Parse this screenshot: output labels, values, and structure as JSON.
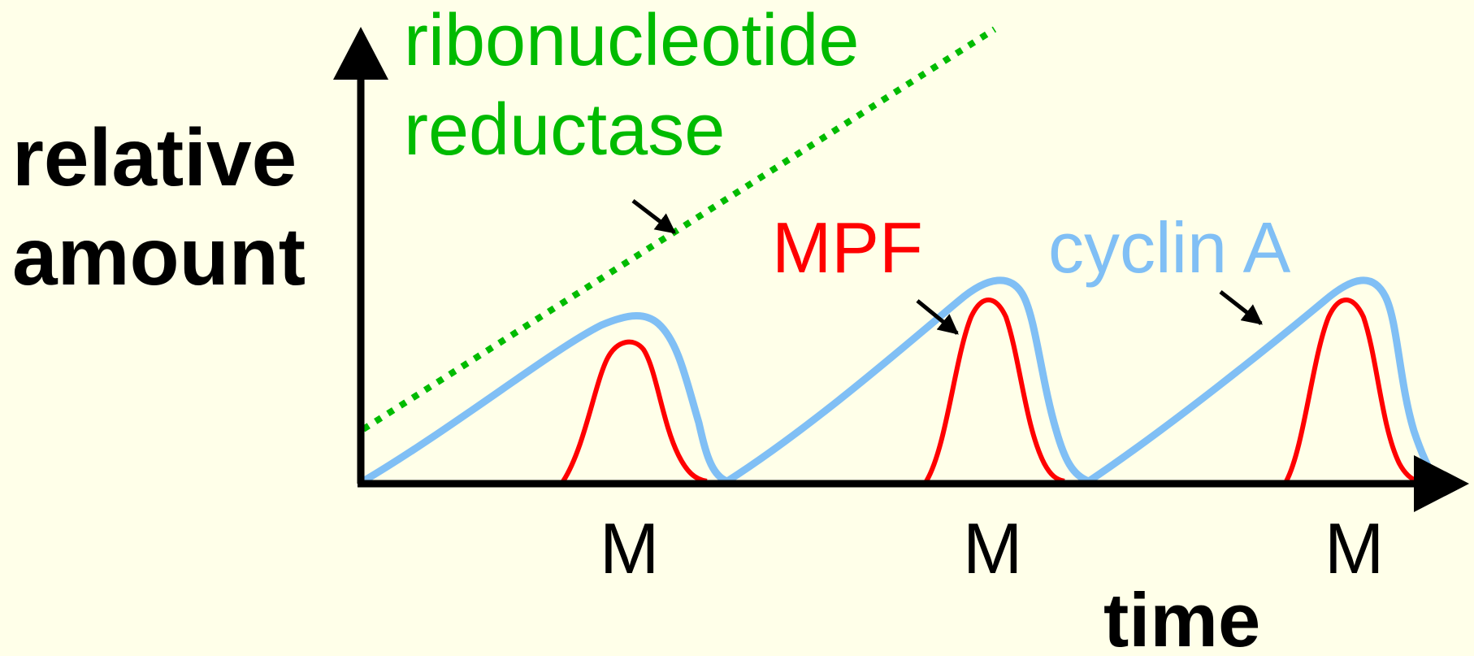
{
  "axis": {
    "y_label_lines": [
      "relative",
      "amount"
    ],
    "x_label": "time"
  },
  "phase_labels": [
    "M",
    "M",
    "M"
  ],
  "labels": {
    "ribonucleotide_reductase_lines": [
      "ribonucleotide",
      "reductase"
    ],
    "mpf": "MPF",
    "cyclin_a": "cyclin A"
  },
  "colors": {
    "background": "#ffffe9",
    "axis": "#000000",
    "ribonucleotide_reductase": "#00bb00",
    "mpf": "#ff0000",
    "cyclin_a": "#80bff5",
    "arrow": "#000000"
  },
  "curves": {
    "ribonucleotide_reductase": {
      "style": "dotted",
      "trend": "steadily increasing"
    },
    "cyclin_a": {
      "style": "solid",
      "trend": "rises gradually each cycle, drops to zero after M"
    },
    "mpf": {
      "style": "solid",
      "trend": "sharp peak at each M"
    }
  }
}
